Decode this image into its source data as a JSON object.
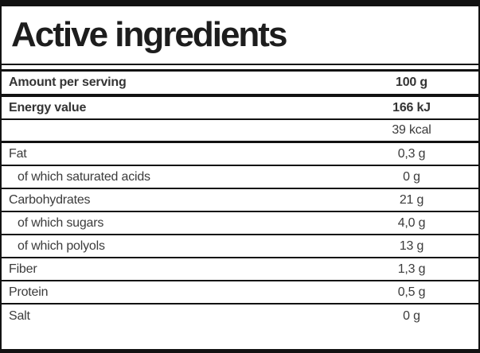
{
  "title": "Active ingredients",
  "table": {
    "rows": [
      {
        "label": "Amount per serving",
        "value": "100 g",
        "bold": true,
        "indent": false
      },
      {
        "label": "Energy value",
        "value": "166 kJ",
        "bold": true,
        "indent": false
      },
      {
        "label": "",
        "value": "39 kcal",
        "bold": false,
        "indent": false
      },
      {
        "label": "Fat",
        "value": "0,3 g",
        "bold": false,
        "indent": false
      },
      {
        "label": "of which saturated acids",
        "value": "0 g",
        "bold": false,
        "indent": true
      },
      {
        "label": "Carbohydrates",
        "value": "21 g",
        "bold": false,
        "indent": false
      },
      {
        "label": "of which sugars",
        "value": "4,0 g",
        "bold": false,
        "indent": true
      },
      {
        "label": "of which polyols",
        "value": "13 g",
        "bold": false,
        "indent": true
      },
      {
        "label": "Fiber",
        "value": "1,3 g",
        "bold": false,
        "indent": false
      },
      {
        "label": "Protein",
        "value": "0,5 g",
        "bold": false,
        "indent": false
      },
      {
        "label": "Salt",
        "value": "0 g",
        "bold": false,
        "indent": false
      }
    ]
  },
  "colors": {
    "border": "#121212",
    "text": "#3b3b3b",
    "title": "#1d1d1d",
    "background": "#ffffff"
  }
}
